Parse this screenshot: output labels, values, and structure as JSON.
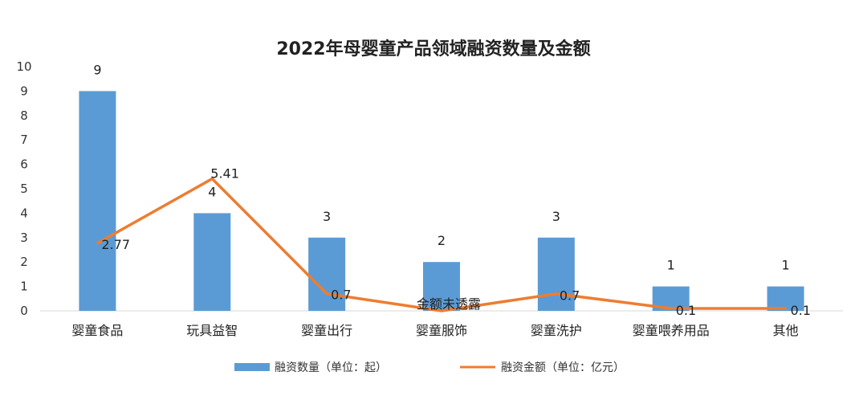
{
  "chart_data": {
    "type": "bar",
    "title": "2022年母婴童产品领域融资数量及金额",
    "categories": [
      "婴童食品",
      "玩具益智",
      "婴童出行",
      "婴童服饰",
      "婴童洗护",
      "婴童喂养用品",
      "其他"
    ],
    "ylim": [
      0,
      10
    ],
    "yticks": [
      0,
      1,
      2,
      3,
      4,
      5,
      6,
      7,
      8,
      9,
      10
    ],
    "grid": false,
    "legend": "bottom",
    "series": [
      {
        "name": "融资数量（单位：起）",
        "type": "bar",
        "color": "#5b9bd5",
        "values": [
          9,
          4,
          3,
          2,
          3,
          1,
          1
        ],
        "labels": [
          "9",
          "4",
          "3",
          "2",
          "3",
          "1",
          "1"
        ]
      },
      {
        "name": "融资金额（单位：亿元）",
        "type": "line",
        "color": "#ed7d31",
        "values": [
          2.77,
          5.41,
          0.7,
          0,
          0.7,
          0.1,
          0.1
        ],
        "labels": [
          "2.77",
          "5.41",
          "0.7",
          "金额未透露",
          "0.7",
          "0.1",
          "0.1"
        ]
      }
    ]
  }
}
